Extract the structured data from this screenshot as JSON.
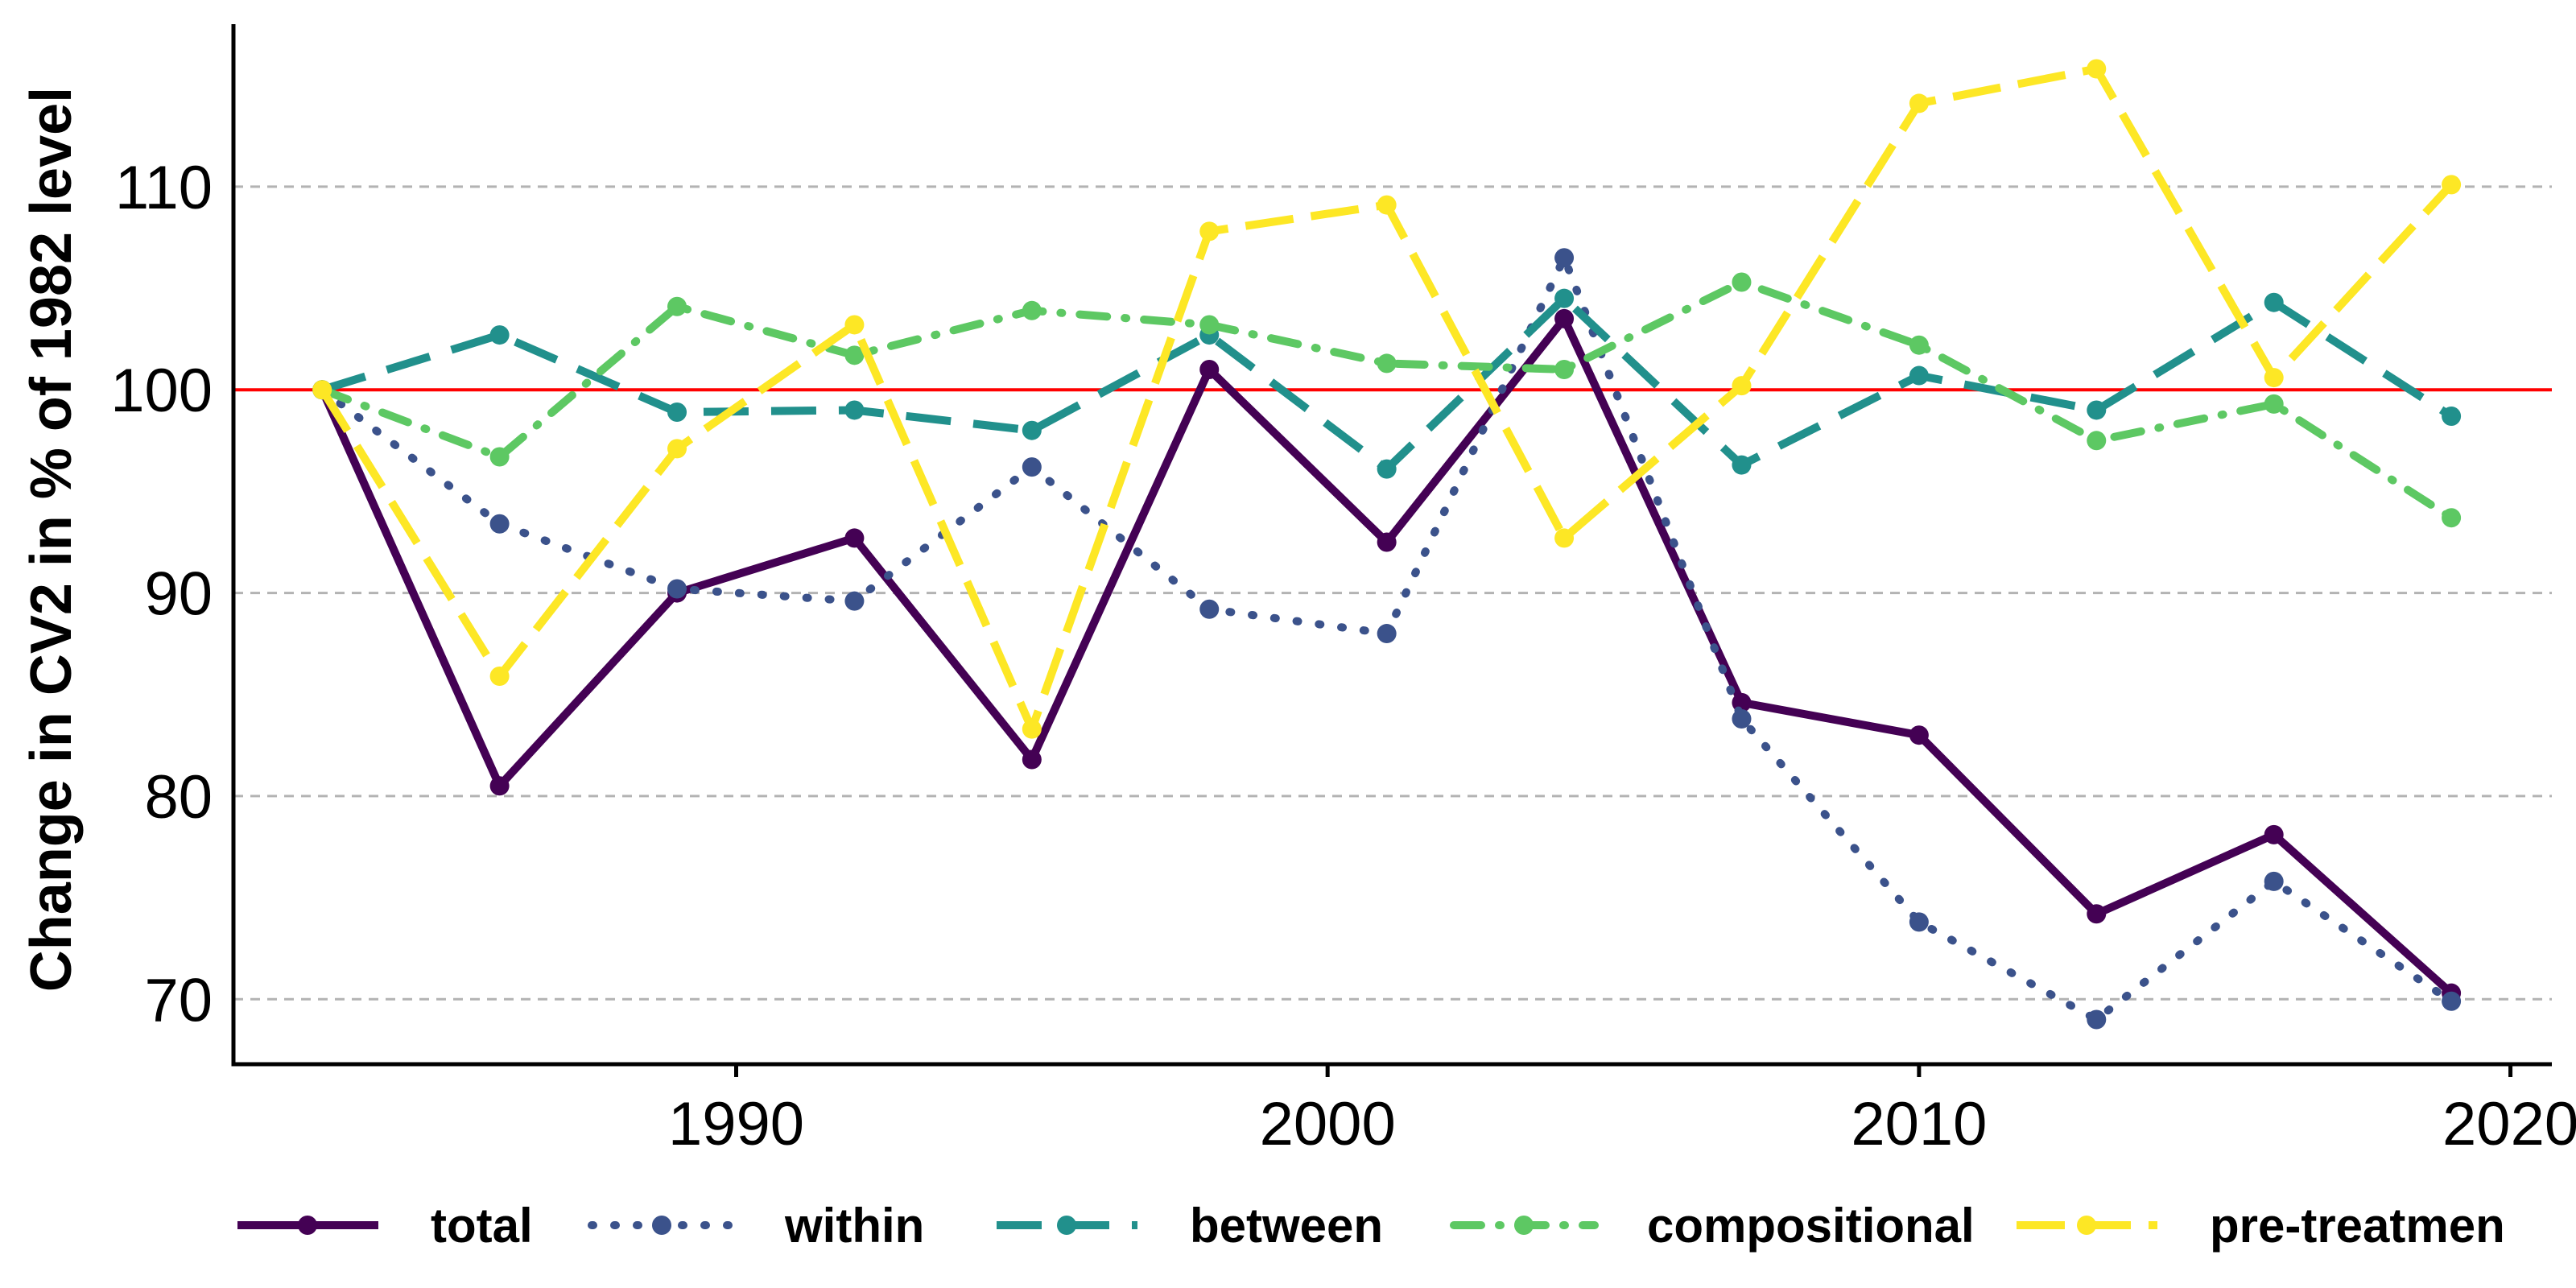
{
  "chart_data": {
    "type": "line",
    "title": "",
    "xlabel": "",
    "ylabel": "Change in CV2 in % of 1982 level",
    "xlim": [
      1981.5,
      2020.7
    ],
    "ylim": [
      66.8,
      118.0
    ],
    "x_ticks": [
      1990,
      2000,
      2010,
      2020
    ],
    "y_ticks": [
      70,
      80,
      90,
      100,
      110
    ],
    "grid": "horizontal dashed",
    "reference_line": {
      "y": 100,
      "color": "#ff0000"
    },
    "legend_position": "bottom",
    "x": [
      1983,
      1986,
      1989,
      1992,
      1995,
      1998,
      2001,
      2004,
      2007,
      2010,
      2013,
      2016,
      2019
    ],
    "series": [
      {
        "name": "total",
        "color": "#440154",
        "dash": "solid",
        "values": [
          100,
          80.5,
          90,
          92.7,
          81.8,
          101,
          92.5,
          103.5,
          84.6,
          83,
          74.2,
          78.1,
          70.3
        ]
      },
      {
        "name": "within",
        "color": "#3b528b",
        "dash": "dotted",
        "values": [
          100,
          93.4,
          90.2,
          89.6,
          96.2,
          89.2,
          88,
          106.5,
          83.8,
          73.8,
          69,
          75.8,
          69.9
        ]
      },
      {
        "name": "between",
        "color": "#21908c",
        "dash": "dashed",
        "values": [
          100,
          102.7,
          98.9,
          99,
          98,
          102.7,
          96.1,
          104.5,
          96.3,
          100.7,
          99,
          104.3,
          98.7
        ]
      },
      {
        "name": "compositional",
        "color": "#5dc863",
        "dash": "dashdot",
        "values": [
          100,
          96.7,
          104.1,
          101.7,
          103.9,
          103.2,
          101.3,
          101,
          105.3,
          102.2,
          97.5,
          99.3,
          93.7
        ]
      },
      {
        "name": "pre-treatmen",
        "color": "#fde725",
        "dash": "longdash",
        "values": [
          100,
          85.9,
          97.1,
          103.2,
          83.3,
          107.8,
          109.1,
          92.7,
          100.2,
          114.1,
          115.8,
          100.6,
          110.1
        ]
      }
    ]
  }
}
